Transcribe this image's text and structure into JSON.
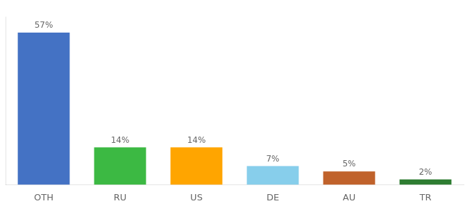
{
  "chart_data": {
    "type": "bar",
    "categories": [
      "OTH",
      "RU",
      "US",
      "DE",
      "AU",
      "TR"
    ],
    "values": [
      57,
      14,
      14,
      7,
      5,
      2
    ],
    "value_labels": [
      "57%",
      "14%",
      "14%",
      "7%",
      "5%",
      "2%"
    ],
    "colors": [
      "#4472C4",
      "#3CB943",
      "#FFA500",
      "#87CEEB",
      "#C0622B",
      "#2E7D32"
    ],
    "ylim": [
      0,
      63
    ],
    "grid": false,
    "data_labels": true,
    "tick_labels": "x"
  }
}
